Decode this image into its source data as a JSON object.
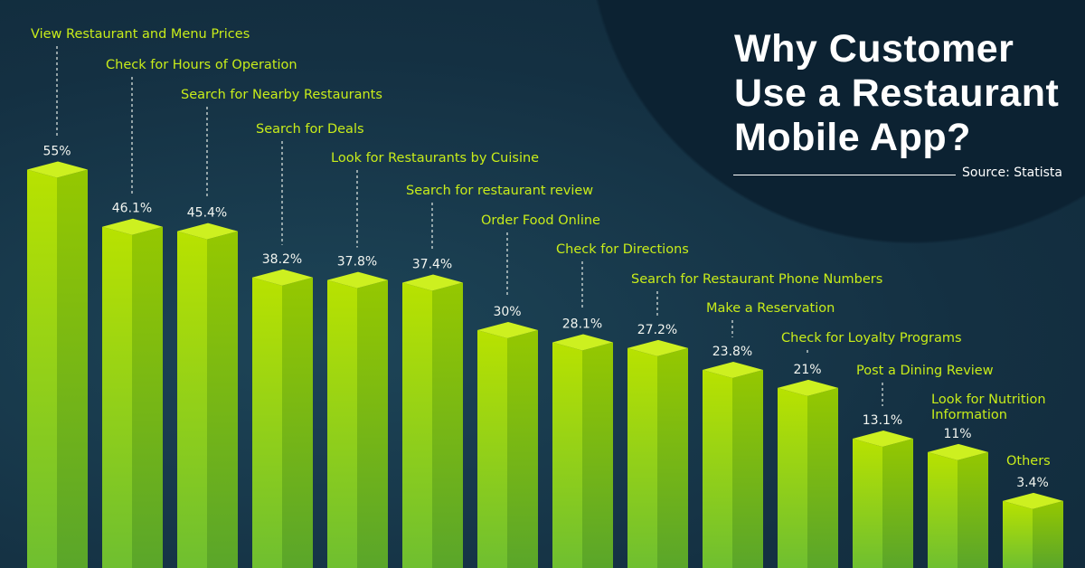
{
  "title": "Why Customer Use a Restaurant Mobile App?",
  "title_lines": [
    "Why Customer",
    "Use a Restaurant",
    "Mobile App?"
  ],
  "source": "Source: Statista",
  "chart_data": {
    "type": "bar",
    "title": "Why Customer Use a Restaurant Mobile App?",
    "xlabel": "",
    "ylabel": "",
    "ylim": [
      0,
      60
    ],
    "grid": false,
    "categories": [
      "View Restaurant and Menu Prices",
      "Check for Hours of Operation",
      "Search for Nearby Restaurants",
      "Search for Deals",
      "Look for Restaurants by Cuisine",
      "Search for restaurant review",
      "Order Food Online",
      "Check for Directions",
      "Search for Restaurant Phone Numbers",
      "Make a Reservation",
      "Check for Loyalty Programs",
      "Post a Dining Review",
      "Look for Nutrition Information",
      "Others"
    ],
    "values": [
      55,
      46.1,
      45.4,
      38.2,
      37.8,
      37.4,
      30,
      28.1,
      27.2,
      23.8,
      21,
      13.1,
      11,
      3.4
    ],
    "value_labels": [
      "55%",
      "46.1%",
      "45.4%",
      "38.2%",
      "37.8%",
      "37.4%",
      "30%",
      "28.1%",
      "27.2%",
      "23.8%",
      "21%",
      "13.1%",
      "11%",
      "3.4%"
    ],
    "colors": {
      "front_top": "#b8e200",
      "front_bottom": "#6fbf30",
      "side_top": "#95c800",
      "side_bottom": "#5aa62a",
      "top": "#cdf020",
      "label": "#c8ec1a"
    }
  }
}
